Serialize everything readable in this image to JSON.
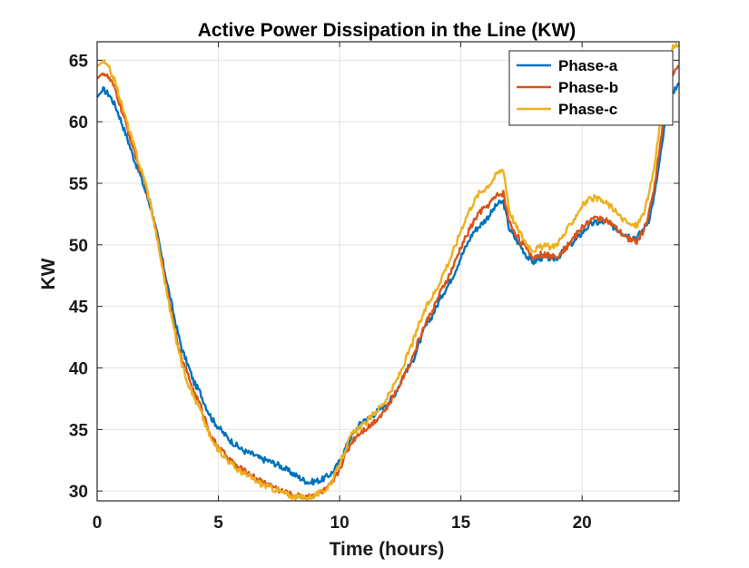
{
  "chart_data": {
    "type": "line",
    "title": "Active Power Dissipation in the Line (KW)",
    "xlabel": "Time (hours)",
    "ylabel": "KW",
    "xlim": [
      0,
      24
    ],
    "ylim": [
      29.2,
      66.5
    ],
    "xticks": [
      0,
      5,
      10,
      15,
      20
    ],
    "yticks": [
      30,
      35,
      40,
      45,
      50,
      55,
      60,
      65
    ],
    "grid": true,
    "legend_position": "top-right",
    "x": [
      0,
      0.25,
      0.5,
      0.75,
      1,
      1.25,
      1.5,
      1.75,
      2,
      2.25,
      2.5,
      2.75,
      3,
      3.25,
      3.5,
      3.75,
      4,
      4.25,
      4.5,
      4.75,
      5,
      5.25,
      5.5,
      5.75,
      6,
      6.25,
      6.5,
      6.75,
      7,
      7.25,
      7.5,
      7.75,
      8,
      8.25,
      8.5,
      8.75,
      9,
      9.25,
      9.5,
      9.75,
      10,
      10.25,
      10.5,
      10.75,
      11,
      11.25,
      11.5,
      11.75,
      12,
      12.25,
      12.5,
      12.75,
      13,
      13.25,
      13.5,
      13.75,
      14,
      14.25,
      14.5,
      14.75,
      15,
      15.25,
      15.5,
      15.75,
      16,
      16.25,
      16.5,
      16.75,
      17,
      17.25,
      17.5,
      17.75,
      18,
      18.25,
      18.5,
      18.75,
      19,
      19.25,
      19.5,
      19.75,
      20,
      20.25,
      20.5,
      20.75,
      21,
      21.25,
      21.5,
      21.75,
      22,
      22.25,
      22.5,
      22.75,
      23,
      23.25,
      23.5,
      23.75,
      24
    ],
    "series": [
      {
        "name": "Phase-a",
        "color": "#0072BD",
        "values": [
          62.0,
          62.6,
          62.2,
          61.3,
          60.0,
          58.6,
          57.1,
          55.8,
          54.3,
          52.8,
          50.6,
          48.2,
          45.8,
          43.5,
          41.5,
          40.2,
          38.8,
          38.0,
          36.8,
          35.8,
          35.2,
          34.6,
          34.1,
          33.7,
          33.3,
          33.1,
          32.9,
          32.6,
          32.5,
          32.3,
          32.1,
          31.8,
          31.5,
          31.2,
          30.9,
          30.7,
          30.8,
          30.9,
          31.2,
          31.6,
          32.4,
          33.5,
          34.5,
          35.2,
          35.8,
          35.9,
          36.4,
          36.8,
          37.2,
          37.8,
          38.8,
          39.8,
          40.5,
          41.8,
          43.2,
          44.0,
          45.0,
          46.0,
          46.8,
          47.8,
          49.0,
          50.0,
          51.0,
          51.5,
          52.0,
          52.6,
          53.3,
          53.5,
          51.3,
          50.5,
          49.8,
          49.0,
          48.6,
          48.9,
          49.0,
          48.8,
          49.0,
          49.5,
          50.0,
          50.4,
          51.0,
          51.5,
          51.8,
          51.8,
          51.9,
          51.5,
          51.2,
          50.9,
          50.7,
          50.6,
          51.2,
          52.0,
          54.2,
          57.5,
          61.0,
          62.5,
          63.0
        ],
        "noise": 0.25
      },
      {
        "name": "Phase-b",
        "color": "#D95319",
        "values": [
          63.5,
          64.0,
          63.5,
          62.6,
          61.0,
          59.4,
          57.8,
          56.2,
          54.8,
          52.8,
          50.4,
          47.8,
          45.2,
          42.8,
          40.6,
          39.4,
          38.0,
          37.0,
          35.6,
          34.2,
          33.6,
          33.0,
          32.5,
          32.0,
          31.7,
          31.4,
          31.1,
          30.8,
          30.6,
          30.4,
          30.1,
          29.9,
          29.7,
          29.6,
          29.6,
          29.6,
          29.7,
          29.9,
          30.2,
          30.8,
          31.8,
          33.0,
          34.0,
          34.6,
          35.0,
          35.3,
          35.8,
          36.3,
          36.9,
          37.8,
          38.8,
          39.8,
          40.8,
          42.2,
          43.4,
          44.4,
          45.4,
          46.5,
          47.4,
          48.5,
          49.8,
          50.8,
          51.8,
          52.6,
          53.0,
          53.5,
          54.0,
          54.2,
          51.8,
          51.0,
          50.2,
          49.5,
          49.0,
          49.2,
          49.2,
          49.0,
          49.2,
          49.6,
          50.2,
          50.8,
          51.4,
          51.9,
          52.1,
          52.2,
          52.0,
          51.6,
          51.1,
          50.7,
          50.4,
          50.3,
          51.0,
          52.4,
          55.0,
          58.5,
          62.0,
          64.0,
          64.5
        ],
        "noise": 0.25
      },
      {
        "name": "Phase-c",
        "color": "#EDB120",
        "values": [
          64.5,
          64.9,
          64.3,
          63.2,
          61.5,
          59.8,
          58.2,
          56.5,
          55.0,
          52.8,
          50.2,
          47.5,
          44.8,
          42.4,
          40.3,
          38.8,
          37.6,
          36.6,
          35.2,
          34.0,
          33.4,
          32.8,
          32.3,
          31.8,
          31.5,
          31.2,
          30.9,
          30.6,
          30.4,
          30.2,
          30.0,
          29.8,
          29.6,
          29.5,
          29.5,
          29.5,
          29.7,
          29.9,
          30.3,
          31.0,
          32.2,
          33.5,
          34.6,
          35.0,
          35.4,
          35.9,
          36.5,
          37.0,
          37.7,
          38.6,
          39.6,
          40.8,
          42.0,
          43.4,
          44.6,
          45.6,
          46.4,
          47.6,
          48.6,
          49.8,
          51.2,
          52.4,
          53.4,
          54.2,
          54.6,
          55.1,
          55.8,
          56.2,
          52.8,
          51.6,
          50.8,
          50.0,
          49.6,
          49.8,
          49.9,
          49.8,
          50.2,
          50.8,
          51.6,
          52.4,
          53.2,
          53.6,
          53.8,
          53.6,
          53.4,
          53.0,
          52.4,
          52.0,
          51.6,
          51.6,
          52.4,
          54.0,
          56.6,
          60.5,
          64.2,
          66.0,
          66.2
        ],
        "noise": 0.25
      }
    ]
  }
}
